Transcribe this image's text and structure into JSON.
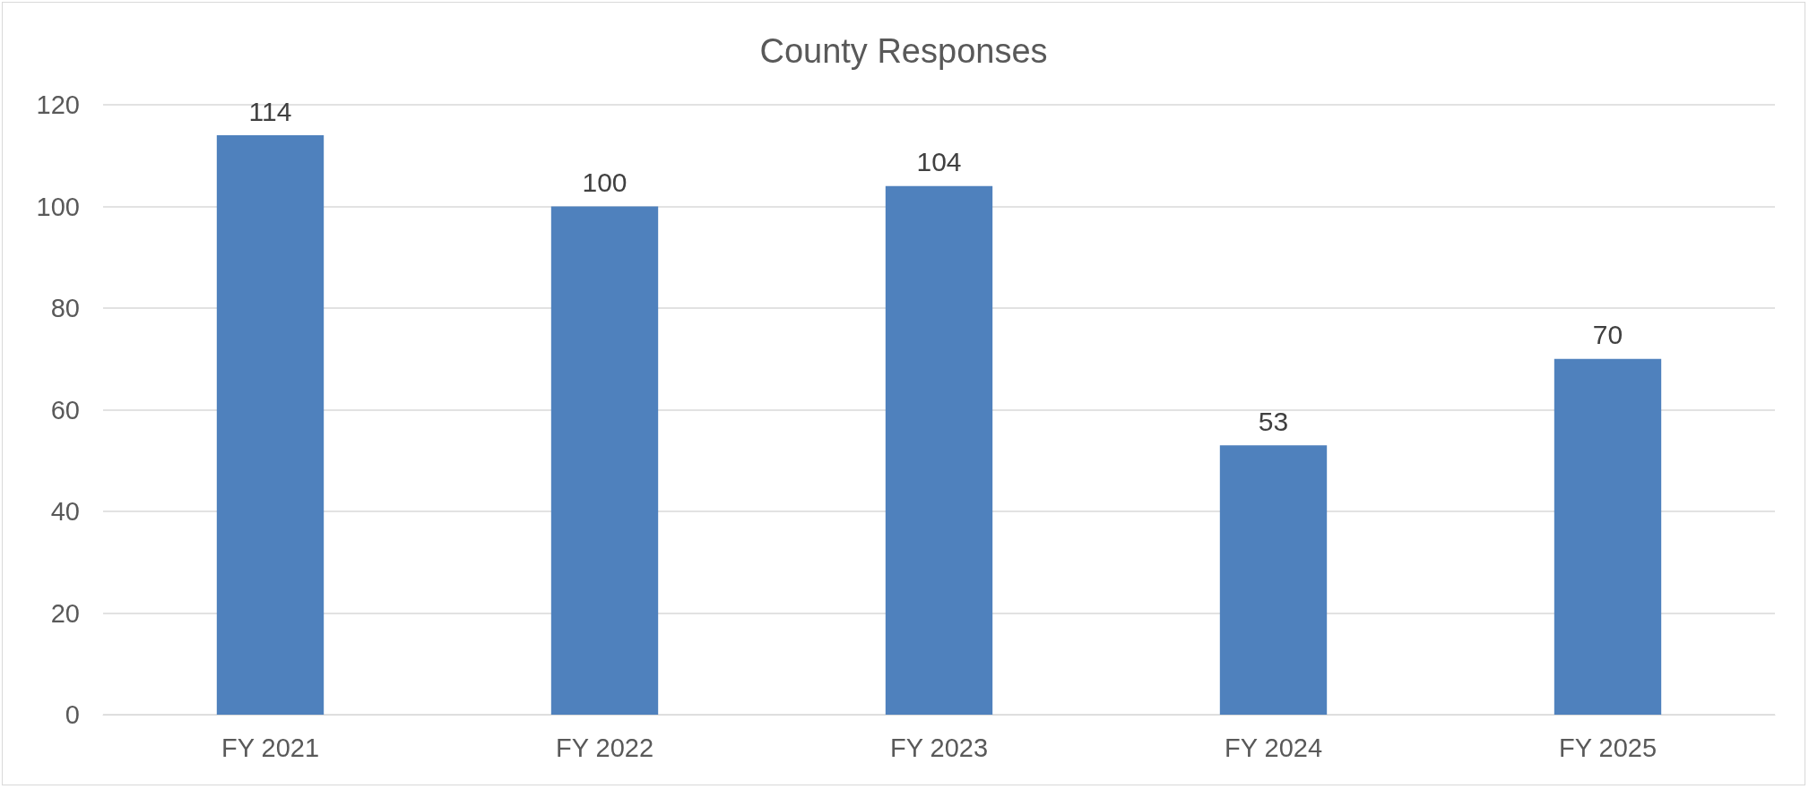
{
  "chart_data": {
    "type": "bar",
    "title": "County Responses",
    "categories": [
      "FY 2021",
      "FY 2022",
      "FY 2023",
      "FY 2024",
      "FY 2025"
    ],
    "values": [
      114,
      100,
      104,
      53,
      70
    ],
    "color": "#4f81bd",
    "ylim": [
      0,
      120
    ],
    "yticks": [
      0,
      20,
      40,
      60,
      80,
      100,
      120
    ],
    "grid": "y",
    "data_labels": true
  }
}
